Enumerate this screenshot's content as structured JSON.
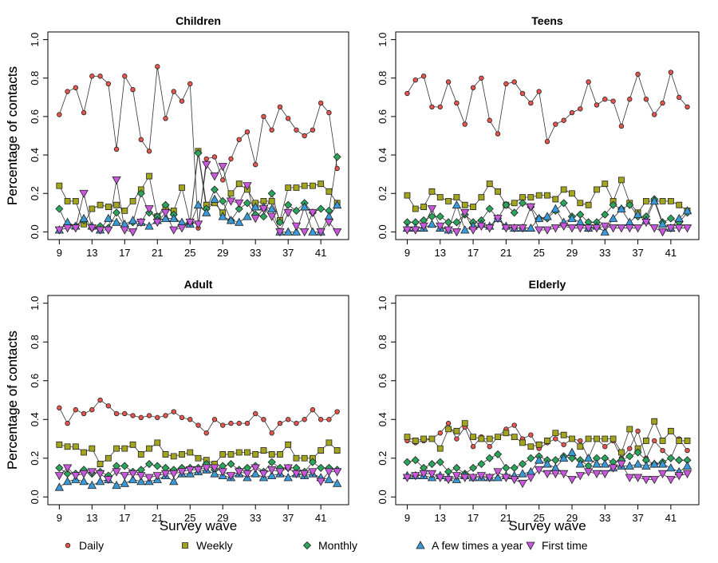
{
  "chart_data": [
    {
      "type": "line",
      "title": "Children",
      "y_label": "Percentage of contacts",
      "x": [
        9,
        10,
        11,
        12,
        13,
        14,
        15,
        16,
        17,
        18,
        19,
        20,
        21,
        22,
        23,
        24,
        25,
        26,
        27,
        28,
        29,
        30,
        31,
        32,
        33,
        34,
        35,
        36,
        37,
        38,
        39,
        40,
        41,
        42,
        43
      ],
      "xlim": [
        7.6,
        44.4
      ],
      "ylim": [
        -0.04,
        1.04
      ],
      "xticks": [
        9,
        13,
        17,
        21,
        25,
        29,
        33,
        37,
        41
      ],
      "yticks": [
        {
          "value": 0,
          "label": "0.0"
        },
        0.2,
        0.4,
        0.6,
        0.8,
        {
          "value": 1,
          "label": "1.0"
        }
      ],
      "series": [
        {
          "name": "Daily",
          "color": "#e8554e",
          "marker": "circle",
          "values": [
            0.61,
            0.73,
            0.75,
            0.62,
            0.81,
            0.81,
            0.77,
            0.43,
            0.81,
            0.74,
            0.48,
            0.42,
            0.86,
            0.59,
            0.73,
            0.68,
            0.77,
            0.02,
            0.38,
            0.39,
            0.27,
            0.38,
            0.48,
            0.52,
            0.35,
            0.6,
            0.53,
            0.65,
            0.59,
            0.53,
            0.5,
            0.53,
            0.67,
            0.62,
            0.33
          ]
        },
        {
          "name": "Weekly",
          "color": "#a3a51f",
          "marker": "square",
          "values": [
            0.24,
            0.16,
            0.16,
            0.04,
            0.12,
            0.14,
            0.13,
            0.14,
            0.11,
            0.16,
            0.22,
            0.29,
            0.08,
            0.12,
            0.11,
            0.23,
            0.05,
            0.42,
            0.14,
            0.15,
            0.1,
            0.2,
            0.25,
            0.22,
            0.15,
            0.16,
            0.16,
            0.06,
            0.23,
            0.23,
            0.24,
            0.24,
            0.25,
            0.21,
            0.15
          ]
        },
        {
          "name": "Monthly",
          "color": "#2ba55c",
          "marker": "diamond",
          "values": [
            0.12,
            0.03,
            0.03,
            0.06,
            0.02,
            0.03,
            0.02,
            0.1,
            0.03,
            0.05,
            0.2,
            0.1,
            0.08,
            0.14,
            0.09,
            0.03,
            0.05,
            0.41,
            0.12,
            0.22,
            0.16,
            0.06,
            0.12,
            0.15,
            0.09,
            0.08,
            0.2,
            0.05,
            0.14,
            0.11,
            0.15,
            0.1,
            0.12,
            0.11,
            0.39
          ]
        },
        {
          "name": "A few times a year",
          "color": "#3a9ad9",
          "marker": "triangle-up",
          "values": [
            0.01,
            0.05,
            0.03,
            0.07,
            0.03,
            0.01,
            0.07,
            0.05,
            0.04,
            0.06,
            0.05,
            0.03,
            0.06,
            0.07,
            0.07,
            0.05,
            0.04,
            0.14,
            0.1,
            0.17,
            0.08,
            0.06,
            0.05,
            0.08,
            0.13,
            0.13,
            0.12,
            0.0,
            0.0,
            0.0,
            0.13,
            0.0,
            0.0,
            0.08,
            0.14
          ]
        },
        {
          "name": "First time",
          "color": "#c958dc",
          "marker": "triangle-down",
          "values": [
            0.01,
            0.02,
            0.02,
            0.2,
            0.02,
            0.01,
            0.01,
            0.27,
            0.01,
            0.0,
            0.05,
            0.12,
            0.05,
            0.1,
            0.01,
            0.02,
            0.05,
            0.04,
            0.35,
            0.29,
            0.34,
            0.16,
            0.15,
            0.24,
            0.07,
            0.12,
            0.08,
            0.0,
            0.1,
            0.03,
            0.0,
            0.1,
            0.0,
            0.05,
            0.0
          ]
        }
      ]
    },
    {
      "type": "line",
      "title": "Teens",
      "y_label": "Percentage of contacts",
      "x": [
        9,
        10,
        11,
        12,
        13,
        14,
        15,
        16,
        17,
        18,
        19,
        20,
        21,
        22,
        23,
        24,
        25,
        26,
        27,
        28,
        29,
        30,
        31,
        32,
        33,
        34,
        35,
        36,
        37,
        38,
        39,
        40,
        41,
        42,
        43
      ],
      "xlim": [
        7.6,
        44.4
      ],
      "ylim": [
        -0.04,
        1.04
      ],
      "xticks": [
        9,
        13,
        17,
        21,
        25,
        29,
        33,
        37,
        41
      ],
      "yticks": [
        {
          "value": 0,
          "label": "0.0"
        },
        0.2,
        0.4,
        0.6,
        0.8,
        {
          "value": 1,
          "label": "1.0"
        }
      ],
      "series": [
        {
          "values": [
            0.72,
            0.79,
            0.81,
            0.65,
            0.65,
            0.78,
            0.67,
            0.56,
            0.75,
            0.8,
            0.58,
            0.51,
            0.77,
            0.78,
            0.72,
            0.67,
            0.73,
            0.47,
            0.56,
            0.58,
            0.62,
            0.64,
            0.78,
            0.66,
            0.69,
            0.68,
            0.55,
            0.69,
            0.82,
            0.69,
            0.61,
            0.67,
            0.83,
            0.7,
            0.65
          ]
        },
        {
          "values": [
            0.19,
            0.12,
            0.13,
            0.21,
            0.18,
            0.16,
            0.18,
            0.14,
            0.13,
            0.18,
            0.25,
            0.21,
            0.14,
            0.15,
            0.18,
            0.18,
            0.19,
            0.19,
            0.17,
            0.22,
            0.2,
            0.15,
            0.14,
            0.22,
            0.25,
            0.16,
            0.27,
            0.15,
            0.1,
            0.16,
            0.16,
            0.16,
            0.16,
            0.14,
            0.11
          ]
        },
        {
          "values": [
            0.05,
            0.05,
            0.06,
            0.08,
            0.08,
            0.05,
            0.05,
            0.09,
            0.05,
            0.06,
            0.12,
            0.07,
            0.14,
            0.1,
            0.15,
            0.13,
            0.07,
            0.07,
            0.11,
            0.15,
            0.08,
            0.09,
            0.05,
            0.05,
            0.09,
            0.14,
            0.12,
            0.14,
            0.08,
            0.08,
            0.17,
            0.05,
            0.07,
            0.05,
            0.1
          ]
        },
        {
          "values": [
            0.02,
            0.02,
            0.02,
            0.04,
            0.02,
            0.01,
            0.14,
            0.01,
            0.03,
            0.04,
            0.03,
            0.07,
            0.03,
            0.02,
            0.02,
            0.02,
            0.07,
            0.08,
            0.12,
            0.05,
            0.07,
            0.05,
            0.02,
            0.03,
            0.0,
            0.07,
            0.12,
            0.05,
            0.09,
            0.06,
            0.16,
            0.04,
            0.02,
            0.07,
            0.11
          ]
        },
        {
          "values": [
            0.01,
            0.01,
            0.03,
            0.12,
            0.03,
            0.01,
            0.0,
            0.1,
            0.01,
            0.03,
            0.02,
            0.07,
            0.02,
            0.02,
            0.02,
            0.13,
            0.01,
            0.01,
            0.02,
            0.03,
            0.02,
            0.02,
            0.02,
            0.02,
            0.03,
            0.02,
            0.02,
            0.02,
            0.02,
            0.05,
            0.02,
            0.0,
            0.02,
            0.02,
            0.02
          ]
        }
      ]
    },
    {
      "type": "line",
      "title": "Adult",
      "y_label": "Percentage of contacts",
      "x_label": "Survey wave",
      "x": [
        9,
        10,
        11,
        12,
        13,
        14,
        15,
        16,
        17,
        18,
        19,
        20,
        21,
        22,
        23,
        24,
        25,
        26,
        27,
        28,
        29,
        30,
        31,
        32,
        33,
        34,
        35,
        36,
        37,
        38,
        39,
        40,
        41,
        42,
        43
      ],
      "xlim": [
        7.6,
        44.4
      ],
      "ylim": [
        -0.04,
        1.04
      ],
      "xticks": [
        9,
        13,
        17,
        21,
        25,
        29,
        33,
        37,
        41
      ],
      "yticks": [
        {
          "value": 0,
          "label": "0.0"
        },
        0.2,
        0.4,
        0.6,
        0.8,
        {
          "value": 1,
          "label": "1.0"
        }
      ],
      "series": [
        {
          "values": [
            0.46,
            0.38,
            0.45,
            0.43,
            0.45,
            0.5,
            0.47,
            0.43,
            0.43,
            0.42,
            0.41,
            0.42,
            0.41,
            0.42,
            0.44,
            0.41,
            0.4,
            0.37,
            0.33,
            0.4,
            0.37,
            0.38,
            0.38,
            0.38,
            0.43,
            0.4,
            0.33,
            0.38,
            0.4,
            0.38,
            0.4,
            0.45,
            0.4,
            0.4,
            0.44
          ]
        },
        {
          "values": [
            0.27,
            0.26,
            0.26,
            0.23,
            0.25,
            0.17,
            0.2,
            0.25,
            0.25,
            0.27,
            0.22,
            0.25,
            0.28,
            0.22,
            0.21,
            0.22,
            0.23,
            0.2,
            0.19,
            0.17,
            0.22,
            0.22,
            0.23,
            0.23,
            0.22,
            0.24,
            0.22,
            0.22,
            0.27,
            0.2,
            0.2,
            0.2,
            0.24,
            0.28,
            0.24
          ]
        },
        {
          "values": [
            0.15,
            0.12,
            0.12,
            0.14,
            0.12,
            0.13,
            0.11,
            0.16,
            0.16,
            0.13,
            0.14,
            0.17,
            0.16,
            0.15,
            0.14,
            0.15,
            0.15,
            0.15,
            0.17,
            0.14,
            0.16,
            0.17,
            0.14,
            0.15,
            0.16,
            0.13,
            0.18,
            0.15,
            0.15,
            0.15,
            0.13,
            0.18,
            0.15,
            0.15,
            0.14
          ]
        },
        {
          "values": [
            0.05,
            0.08,
            0.09,
            0.08,
            0.06,
            0.08,
            0.09,
            0.06,
            0.07,
            0.09,
            0.08,
            0.08,
            0.09,
            0.11,
            0.08,
            0.12,
            0.12,
            0.13,
            0.14,
            0.12,
            0.11,
            0.1,
            0.12,
            0.1,
            0.12,
            0.1,
            0.11,
            0.12,
            0.1,
            0.12,
            0.11,
            0.12,
            0.1,
            0.09,
            0.07
          ]
        },
        {
          "values": [
            0.11,
            0.15,
            0.11,
            0.12,
            0.13,
            0.12,
            0.09,
            0.13,
            0.11,
            0.12,
            0.11,
            0.1,
            0.11,
            0.12,
            0.12,
            0.13,
            0.14,
            0.14,
            0.15,
            0.15,
            0.13,
            0.11,
            0.13,
            0.12,
            0.15,
            0.12,
            0.14,
            0.13,
            0.15,
            0.12,
            0.12,
            0.13,
            0.08,
            0.13,
            0.13
          ]
        }
      ]
    },
    {
      "type": "line",
      "title": "Elderly",
      "y_label": "Percentage of contacts",
      "x_label": "Survey wave",
      "x": [
        9,
        10,
        11,
        12,
        13,
        14,
        15,
        16,
        17,
        18,
        19,
        20,
        21,
        22,
        23,
        24,
        25,
        26,
        27,
        28,
        29,
        30,
        31,
        32,
        33,
        34,
        35,
        36,
        37,
        38,
        39,
        40,
        41,
        42,
        43
      ],
      "xlim": [
        7.6,
        44.4
      ],
      "ylim": [
        -0.04,
        1.04
      ],
      "xticks": [
        9,
        13,
        17,
        21,
        25,
        29,
        33,
        37,
        41
      ],
      "yticks": [
        {
          "value": 0,
          "label": "0.0"
        },
        0.2,
        0.4,
        0.6,
        0.8,
        {
          "value": 1,
          "label": "1.0"
        }
      ],
      "series": [
        {
          "values": [
            0.29,
            0.28,
            0.29,
            0.3,
            0.33,
            0.38,
            0.3,
            0.36,
            0.26,
            0.31,
            0.26,
            0.31,
            0.35,
            0.37,
            0.3,
            0.32,
            0.25,
            0.28,
            0.3,
            0.27,
            0.3,
            0.29,
            0.2,
            0.3,
            0.26,
            0.29,
            0.2,
            0.25,
            0.34,
            0.2,
            0.29,
            0.24,
            0.2,
            0.3,
            0.24
          ]
        },
        {
          "values": [
            0.31,
            0.29,
            0.3,
            0.3,
            0.25,
            0.35,
            0.34,
            0.38,
            0.31,
            0.3,
            0.3,
            0.31,
            0.33,
            0.31,
            0.28,
            0.26,
            0.27,
            0.29,
            0.33,
            0.32,
            0.3,
            0.26,
            0.3,
            0.3,
            0.3,
            0.3,
            0.23,
            0.35,
            0.25,
            0.29,
            0.39,
            0.29,
            0.34,
            0.29,
            0.29
          ]
        },
        {
          "values": [
            0.18,
            0.19,
            0.15,
            0.17,
            0.18,
            0.13,
            0.15,
            0.12,
            0.15,
            0.17,
            0.2,
            0.22,
            0.15,
            0.15,
            0.17,
            0.2,
            0.21,
            0.19,
            0.19,
            0.21,
            0.2,
            0.19,
            0.16,
            0.2,
            0.2,
            0.18,
            0.19,
            0.21,
            0.23,
            0.19,
            0.17,
            0.18,
            0.2,
            0.19,
            0.19
          ]
        },
        {
          "values": [
            0.11,
            0.11,
            0.11,
            0.1,
            0.11,
            0.1,
            0.09,
            0.11,
            0.1,
            0.1,
            0.1,
            0.1,
            0.11,
            0.11,
            0.12,
            0.13,
            0.19,
            0.17,
            0.15,
            0.2,
            0.23,
            0.17,
            0.2,
            0.17,
            0.17,
            0.15,
            0.16,
            0.16,
            0.17,
            0.16,
            0.17,
            0.17,
            0.15,
            0.13,
            0.16
          ]
        },
        {
          "values": [
            0.1,
            0.11,
            0.12,
            0.12,
            0.1,
            0.09,
            0.11,
            0.1,
            0.1,
            0.11,
            0.1,
            0.13,
            0.1,
            0.09,
            0.07,
            0.1,
            0.14,
            0.12,
            0.12,
            0.12,
            0.09,
            0.11,
            0.13,
            0.12,
            0.12,
            0.15,
            0.17,
            0.1,
            0.1,
            0.09,
            0.09,
            0.12,
            0.09,
            0.11,
            0.12
          ]
        }
      ]
    }
  ]
}
